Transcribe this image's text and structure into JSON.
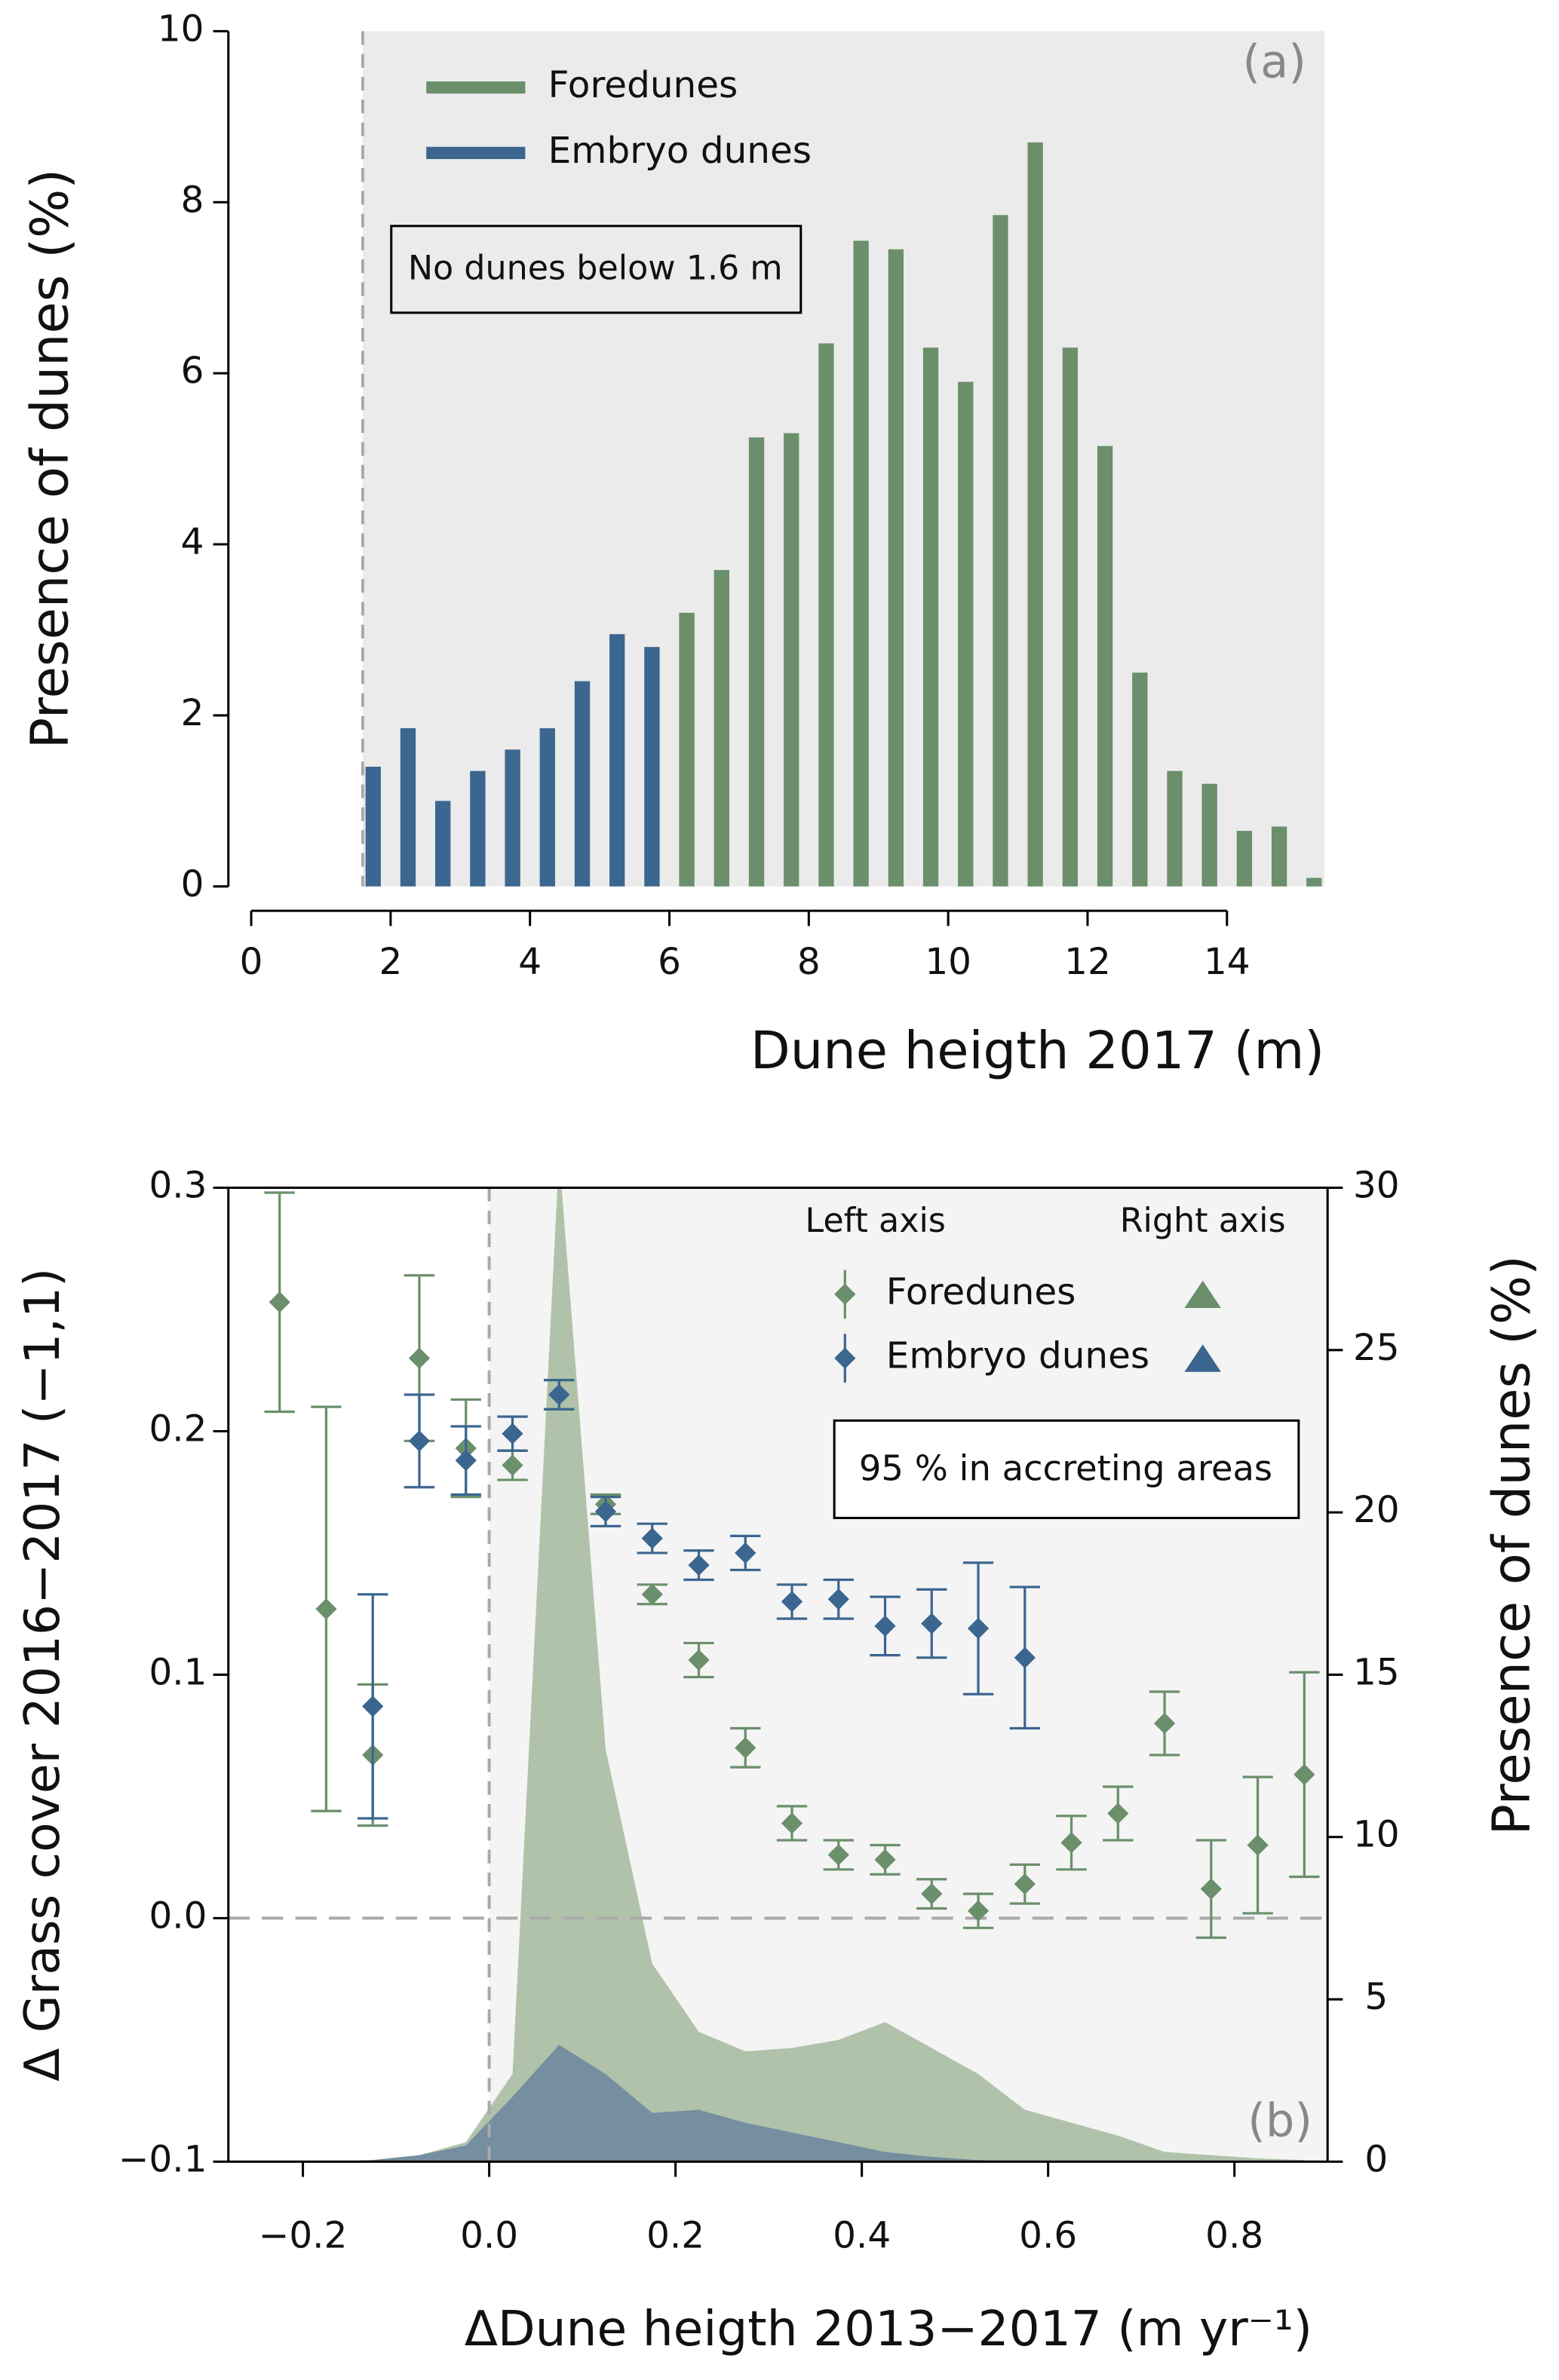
{
  "chart_data": [
    {
      "type": "bar",
      "xlabel": "Dune heigth 2017 (m)",
      "ylabel": "Presence of dunes (%)",
      "xlim": [
        0,
        15.4
      ],
      "xticks": [
        0,
        2,
        4,
        6,
        8,
        10,
        12,
        14
      ],
      "ylim": [
        0,
        10
      ],
      "yticks": [
        0,
        2,
        4,
        6,
        8,
        10
      ],
      "vline": 1.6,
      "annotation": "No dunes below 1.6 m",
      "panel_label": "(a)",
      "legend": "upper left",
      "series": [
        {
          "name": "Foredunes",
          "color": "#6b8f6b",
          "x": [
            6.25,
            6.75,
            7.25,
            7.75,
            8.25,
            8.75,
            9.25,
            9.75,
            10.25,
            10.75,
            11.25,
            11.75,
            12.25,
            12.75,
            13.25,
            13.75,
            14.25,
            14.75,
            15.25
          ],
          "values": [
            3.2,
            3.7,
            5.25,
            5.3,
            6.35,
            7.55,
            7.45,
            6.3,
            5.9,
            7.85,
            8.7,
            6.3,
            5.15,
            2.5,
            1.35,
            1.2,
            0.65,
            0.7,
            0.1
          ]
        },
        {
          "name": "Embryo dunes",
          "color": "#3b6690",
          "x": [
            1.75,
            2.25,
            2.75,
            3.25,
            3.75,
            4.25,
            4.75,
            5.25,
            5.75
          ],
          "values": [
            1.4,
            1.85,
            1.0,
            1.35,
            1.6,
            1.85,
            2.4,
            2.95,
            2.8
          ]
        }
      ]
    },
    {
      "type": "scatter",
      "xlabel": "ΔDune heigth 2013−2017 (m yr⁻¹)",
      "ylabel": "Δ Grass cover 2016−2017 (−1,1)",
      "y2label": "Presence of dunes (%)",
      "xlim": [
        -0.28,
        0.9
      ],
      "xticks": [
        {
          "value": -0.2,
          "label": "−0.2"
        },
        {
          "value": 0,
          "label": "0.0"
        },
        0.2,
        0.4,
        0.6,
        0.8
      ],
      "ylim": [
        -0.1,
        0.3
      ],
      "yticks": [
        {
          "value": -0.1,
          "label": "−0.1"
        },
        {
          "value": 0,
          "label": "0.0"
        },
        0.1,
        0.2,
        0.3
      ],
      "y2lim": [
        0,
        30
      ],
      "y2ticks": [
        0,
        5,
        10,
        15,
        20,
        25,
        30
      ],
      "vline": 0,
      "hline": 0,
      "annotation": "95 % in accreting areas",
      "panel_label": "(b)",
      "legend_headers": [
        "Left axis",
        "Right axis"
      ],
      "legend": "upper right",
      "x": [
        -0.225,
        -0.175,
        -0.125,
        -0.075,
        -0.025,
        0.025,
        0.075,
        0.125,
        0.175,
        0.225,
        0.275,
        0.325,
        0.375,
        0.425,
        0.475,
        0.525,
        0.575,
        0.625,
        0.675,
        0.725,
        0.775,
        0.825,
        0.875
      ],
      "series": [
        {
          "name": "Foredunes",
          "color": "#a8bea2",
          "style": "area",
          "axis": "y2",
          "values": [
            0,
            0,
            0.05,
            0.2,
            0.6,
            2.7,
            31,
            12.7,
            6.1,
            4.0,
            3.4,
            3.5,
            3.75,
            4.3,
            3.5,
            2.7,
            1.6,
            1.2,
            0.8,
            0.3,
            0.2,
            0.1,
            0.05
          ]
        },
        {
          "name": "Embryo dunes",
          "color": "#6f8aa0",
          "style": "area",
          "axis": "y2",
          "values": [
            0,
            0,
            0.05,
            0.2,
            0.5,
            2.0,
            3.6,
            2.7,
            1.5,
            1.6,
            1.2,
            0.9,
            0.6,
            0.3,
            0.15,
            0.05,
            0,
            0,
            0,
            0,
            0,
            0,
            0
          ]
        },
        {
          "name": "Foredunes",
          "color": "#6b8f6b",
          "style": "points",
          "values": [
            0.253,
            0.127,
            0.067,
            0.23,
            0.193,
            0.186,
            0.215,
            0.17,
            0.133,
            0.106,
            0.07,
            0.039,
            0.026,
            0.024,
            0.01,
            0.003,
            0.014,
            0.031,
            0.043,
            0.08,
            0.012,
            0.03,
            0.059
          ],
          "errors": [
            0.045,
            0.083,
            0.029,
            0.034,
            0.02,
            0.006,
            0.006,
            0.004,
            0.004,
            0.007,
            0.008,
            0.007,
            0.006,
            0.006,
            0.006,
            0.007,
            0.008,
            0.011,
            0.011,
            0.013,
            0.02,
            0.028,
            0.042
          ]
        },
        {
          "name": "Embryo dunes",
          "color": "#3b6690",
          "style": "points",
          "values": [
            null,
            null,
            0.087,
            0.196,
            0.188,
            0.199,
            0.215,
            0.167,
            0.156,
            0.145,
            0.15,
            0.13,
            0.131,
            0.12,
            0.121,
            0.119,
            0.107,
            null,
            null,
            null,
            null,
            null,
            null
          ],
          "errors": [
            null,
            null,
            0.046,
            0.019,
            0.014,
            0.007,
            0.006,
            0.006,
            0.006,
            0.006,
            0.007,
            0.007,
            0.008,
            0.012,
            0.014,
            0.027,
            0.029,
            null,
            null,
            null,
            null,
            null,
            null
          ]
        }
      ]
    }
  ]
}
